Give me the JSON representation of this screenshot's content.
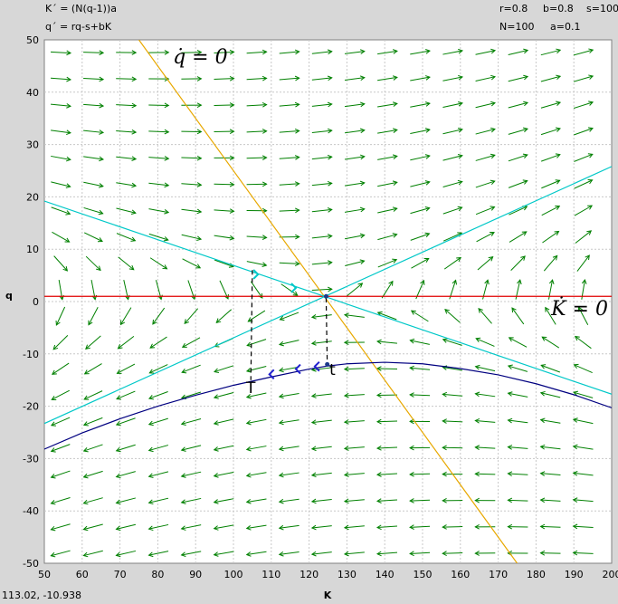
{
  "header": {
    "eq_k": "K´ = (N(q-1))a",
    "eq_q": "q´ = rq-s+bK",
    "param_r": "r=0.8",
    "param_b": "b=0.8",
    "param_s": "s=100",
    "param_n": "N=100",
    "param_a": "a=0.1"
  },
  "status": {
    "coordinates": "113.02, -10.938"
  },
  "chart_data": {
    "type": "line",
    "title": "",
    "xlabel": "K",
    "ylabel": "q",
    "xlim": [
      50,
      200
    ],
    "ylim": [
      -50,
      50
    ],
    "xticks": [
      50,
      60,
      70,
      80,
      90,
      100,
      110,
      120,
      130,
      140,
      150,
      160,
      170,
      180,
      190,
      200
    ],
    "yticks": [
      -50,
      -40,
      -30,
      -20,
      -10,
      0,
      10,
      20,
      30,
      40,
      50
    ],
    "grid": true,
    "direction_field": {
      "color": "#008000",
      "cols": 17,
      "rows": 20
    },
    "series": [
      {
        "color": "#e8a800",
        "x": [
          75,
          175
        ],
        "y": [
          50,
          -50
        ]
      },
      {
        "color": "#e00000",
        "x": [
          50,
          200
        ],
        "y": [
          1,
          1
        ]
      },
      {
        "color": "#00c8c8",
        "x": [
          50,
          200
        ],
        "y": [
          19.2,
          -17.7
        ]
      },
      {
        "color": "#00c8c8",
        "x": [
          50,
          200
        ],
        "y": [
          -23.3,
          25.8
        ]
      },
      {
        "color": "#000080",
        "x": [
          50,
          60,
          70,
          80,
          90,
          100,
          110,
          120,
          125,
          130,
          140,
          150,
          160,
          170,
          180,
          190,
          200
        ],
        "y": [
          -28.2,
          -25.1,
          -22.4,
          -20.0,
          -17.9,
          -16.0,
          -14.4,
          -12.9,
          -12.3,
          -11.9,
          -11.6,
          -11.9,
          -12.8,
          -14.0,
          -15.7,
          -17.8,
          -20.3
        ]
      }
    ],
    "dashed_segments": [
      {
        "x": [
          105,
          104.6
        ],
        "y": [
          6,
          -15
        ]
      },
      {
        "x": [
          124.5,
          124.8
        ],
        "y": [
          0.7,
          -12
        ]
      }
    ],
    "trajectory_arrows": [
      {
        "color": "#00c8c8",
        "x": 106.5,
        "y": 5.2,
        "dir": "right"
      },
      {
        "color": "#00c8c8",
        "x": 116.5,
        "y": 2.6,
        "dir": "right"
      },
      {
        "color": "#2020d0",
        "x": 109.5,
        "y": -13.9,
        "dir": "left"
      },
      {
        "color": "#2020d0",
        "x": 116.5,
        "y": -12.9,
        "dir": "left"
      },
      {
        "color": "#2020d0",
        "x": 121.5,
        "y": -12.4,
        "dir": "left"
      }
    ],
    "points": [
      {
        "x": 124.5,
        "y": 1
      },
      {
        "x": 124.8,
        "y": -12
      }
    ],
    "annotations": [
      {
        "text": "T",
        "x": 104.6,
        "y": -17.5
      },
      {
        "text": "t",
        "x": 126.2,
        "y": -14
      }
    ],
    "math_labels": [
      {
        "tex": "q̇ = 0",
        "x": 84,
        "y": 45.5
      },
      {
        "tex": "K̇ = 0",
        "x": 184,
        "y": -2.6
      }
    ]
  }
}
